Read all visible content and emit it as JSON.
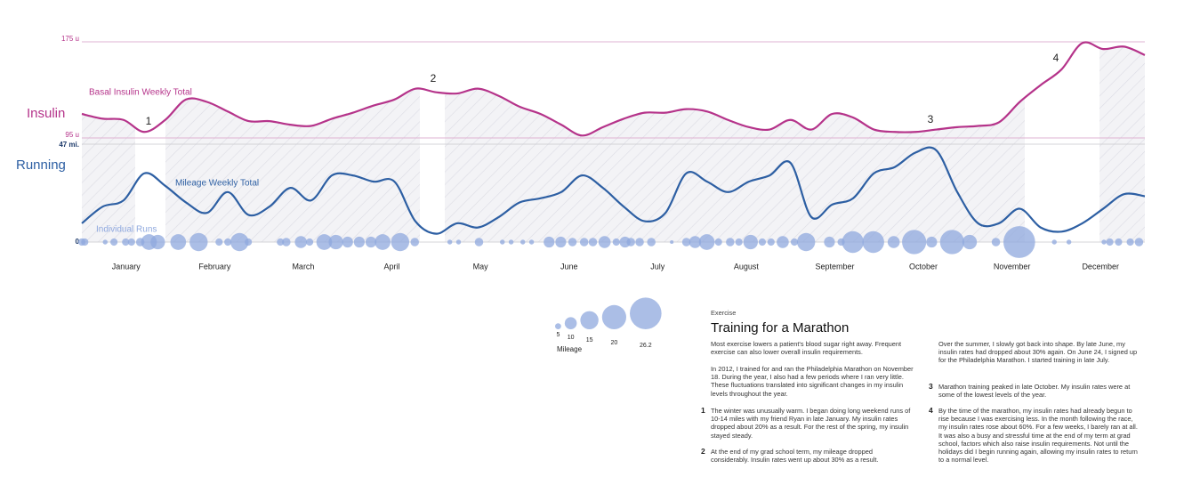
{
  "chart_data": {
    "type": "line",
    "axis_titles": {
      "y": "Insulin",
      "y2": "Running"
    },
    "x": [
      1,
      2,
      3,
      4,
      5,
      6,
      7,
      8,
      9,
      10,
      11,
      12,
      13,
      14,
      15,
      16,
      17,
      18,
      19,
      20,
      21,
      22,
      23,
      24,
      25,
      26,
      27,
      28,
      29,
      30,
      31,
      32,
      33,
      34,
      35,
      36,
      37,
      38,
      39,
      40,
      41,
      42,
      43,
      44,
      45,
      46,
      47,
      48,
      49,
      50,
      51,
      52
    ],
    "xlim": [
      1,
      52
    ],
    "categories": [
      "January",
      "February",
      "March",
      "April",
      "May",
      "June",
      "July",
      "August",
      "September",
      "October",
      "November",
      "December"
    ],
    "ylim": [
      95,
      175
    ],
    "yticks": [
      {
        "value": 95,
        "label": "95 u"
      },
      {
        "value": 175,
        "label": "175 u"
      }
    ],
    "y2lim": [
      0,
      47
    ],
    "y2ticks": [
      0,
      {
        "value": 47,
        "label": "47 mi."
      }
    ],
    "grid": true,
    "series": [
      {
        "name": "Basal Insulin Weekly Total",
        "color": "#b5338a",
        "axis": "y",
        "values": [
          115,
          111,
          110,
          100,
          110,
          127,
          125,
          117,
          109,
          109,
          106,
          105,
          111,
          116,
          122,
          127,
          136,
          133,
          132,
          136,
          130,
          121,
          115,
          106,
          97,
          104,
          111,
          116,
          116,
          119,
          117,
          110,
          104,
          102,
          110,
          102,
          115,
          112,
          102,
          100,
          100,
          102,
          104,
          105,
          108,
          125,
          139,
          152,
          174,
          169,
          171,
          164
        ]
      },
      {
        "name": "Mileage Weekly Total",
        "color": "#2d5fa3",
        "axis": "y2",
        "values": [
          9,
          17,
          20,
          33,
          27,
          19,
          14,
          24,
          13,
          17,
          26,
          20,
          32,
          32,
          29,
          29,
          10,
          4,
          9,
          7,
          12,
          19,
          21,
          24,
          32,
          26,
          17,
          10,
          14,
          33,
          29,
          24,
          29,
          32,
          38,
          12,
          18,
          21,
          33,
          36,
          43,
          44,
          24,
          9,
          9,
          16,
          7,
          5,
          9,
          16,
          23,
          22
        ]
      }
    ],
    "runs": {
      "name": "Individual Runs",
      "color": "#8fa8de",
      "xlim": [
        1,
        365
      ],
      "x": [
        1,
        2,
        9,
        12,
        16,
        18,
        21,
        24,
        27,
        34,
        41,
        48,
        51,
        55,
        58,
        69,
        71,
        76,
        79,
        84,
        88,
        92,
        96,
        100,
        104,
        110,
        115,
        127,
        130,
        137,
        145,
        148,
        152,
        155,
        161,
        165,
        169,
        173,
        176,
        180,
        184,
        187,
        189,
        192,
        196,
        203,
        208,
        211,
        215,
        219,
        223,
        226,
        230,
        234,
        237,
        241,
        245,
        249,
        257,
        261,
        265,
        272,
        279,
        286,
        292,
        299,
        305,
        314,
        322,
        334,
        339,
        351,
        353,
        356,
        360,
        363
      ],
      "values": [
        6,
        6,
        4,
        6,
        6,
        6,
        7,
        13,
        12,
        13,
        15,
        6,
        6,
        15,
        6,
        6,
        7,
        10,
        6,
        13,
        12,
        9,
        9,
        9,
        13,
        15,
        7,
        4,
        4,
        7,
        4,
        4,
        4,
        4,
        9,
        9,
        7,
        7,
        7,
        10,
        6,
        9,
        7,
        7,
        7,
        3,
        7,
        10,
        13,
        6,
        7,
        6,
        12,
        6,
        6,
        10,
        6,
        15,
        9,
        6,
        18,
        18,
        10,
        20,
        9,
        20,
        12,
        7,
        26.2,
        4,
        4,
        4,
        6,
        6,
        6,
        7
      ]
    },
    "size_legend": {
      "title": "Mileage",
      "values": [
        5,
        10,
        15,
        20,
        26.2
      ]
    }
  },
  "article": {
    "kicker": "Exercise",
    "title": "Training for a Marathon",
    "paragraphs": [
      "Most exercise lowers a patient's blood sugar right away. Frequent exercise can also lower overall insulin requirements.",
      "In 2012, I trained for and ran the Philadelphia Marathon on November 18. During the year, I also had a few periods where I ran very little. These fluctuations translated into significant changes in my insulin levels throughout the year.",
      "Over the summer, I slowly got back into shape. By late June, my insulin rates had dropped about 30% again. On June 24, I signed up for the Philadelphia Marathon. I started training in late July."
    ],
    "notes": [
      {
        "number": "1",
        "text": "The winter was unusually warm. I began doing long weekend runs of 10-14 miles with my friend Ryan in late January. My insulin rates dropped about 20% as a result. For the rest of the spring, my insulin stayed steady."
      },
      {
        "number": "2",
        "text": "At the end of my grad school term, my mileage dropped considerably. Insulin rates went up about 30% as a result."
      },
      {
        "number": "3",
        "text": "Marathon training peaked in late October. My insulin rates were at some of the lowest levels of the year."
      },
      {
        "number": "4",
        "text": "By the time of the marathon, my insulin rates had already begun to rise because I was exercising less. In the month following the race, my insulin rates rose about 60%. For a few weeks, I barely ran at all. It was also a busy and stressful time at the end of my term at grad school, factors which also raise insulin requirements. Not until the holidays did I begin running again, allowing my insulin rates to return to a normal level."
      }
    ]
  }
}
